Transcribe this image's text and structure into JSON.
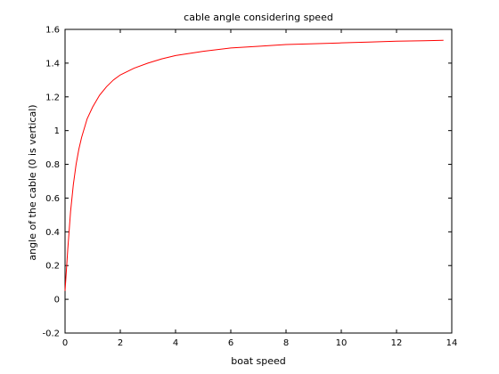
{
  "chart_data": {
    "type": "line",
    "title": "cable angle considering speed",
    "xlabel": "boat speed",
    "ylabel": "angle of the cable (0 is vertical)",
    "xlim": [
      0,
      14
    ],
    "ylim": [
      -0.2,
      1.6
    ],
    "x_ticks": [
      "0",
      "2",
      "4",
      "6",
      "8",
      "10",
      "12",
      "14"
    ],
    "y_ticks": [
      "-0.2",
      "0",
      "0.2",
      "0.4",
      "0.6",
      "0.8",
      "1",
      "1.2",
      "1.4",
      "1.6"
    ],
    "grid": false,
    "series": [
      {
        "color": "#ff0000",
        "x": [
          0,
          0.1,
          0.2,
          0.3,
          0.4,
          0.5,
          0.6,
          0.8,
          1.0,
          1.25,
          1.5,
          1.75,
          2.0,
          2.5,
          3.0,
          3.5,
          4.0,
          5.0,
          6.0,
          7.0,
          8.0,
          9.0,
          10.0,
          11.0,
          12.0,
          13.0,
          13.7
        ],
        "y": [
          0.05,
          0.3,
          0.52,
          0.68,
          0.8,
          0.89,
          0.96,
          1.07,
          1.14,
          1.21,
          1.26,
          1.3,
          1.33,
          1.37,
          1.4,
          1.425,
          1.445,
          1.47,
          1.49,
          1.5,
          1.51,
          1.515,
          1.52,
          1.525,
          1.53,
          1.533,
          1.535
        ]
      }
    ]
  }
}
